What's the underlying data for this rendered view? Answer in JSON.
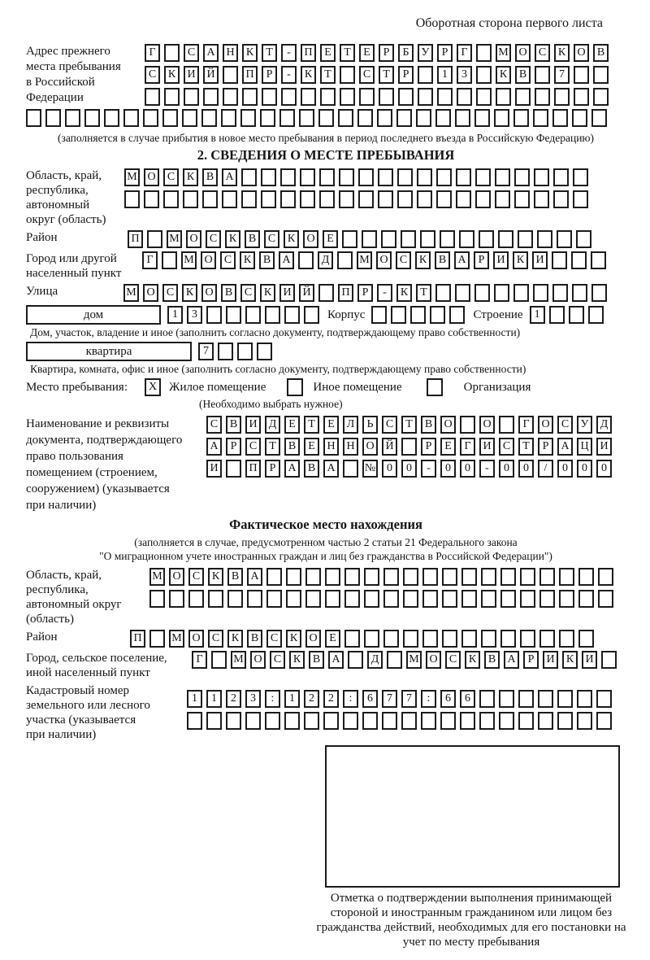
{
  "corner_note": "Оборотная сторона первого листа",
  "prev_address": {
    "label": "Адрес прежнего\nместа пребывания\nв Российской\nФедерации",
    "rows": [
      {
        "text": "Г САНКТ-ПЕТЕРБУРГ МОСКОВ",
        "count": 24
      },
      {
        "text": "СКИЙ ПР-КТ СТР 13 КВ 7",
        "count": 24
      },
      {
        "text": "",
        "count": 24
      }
    ],
    "overflow_row": {
      "text": "",
      "count": 30
    },
    "note": "(заполняется в случае прибытия в новое место пребывания в период последнего въезда в Российскую Федерацию)"
  },
  "section2": {
    "title": "2. СВЕДЕНИЯ О МЕСТЕ ПРЕБЫВАНИЯ",
    "region": {
      "label": "Область, край,\nреспублика,\nавтономный\nокруг (область)",
      "rows": [
        {
          "text": "МОСКВА",
          "count": 24
        },
        {
          "text": "",
          "count": 24
        }
      ]
    },
    "district": {
      "label": "Район",
      "row": {
        "text": "П МОСКВСКОЕ",
        "count": 24
      }
    },
    "city": {
      "label": "Город или другой\nнаселенный пункт",
      "row": {
        "text": "Г МОСКВА Д МОСКВАРИКИ",
        "count": 24
      }
    },
    "street": {
      "label": "Улица",
      "row": {
        "text": "МОСКОВСКИЙ ПР-КТ",
        "count": 25
      }
    },
    "house": {
      "box_label": "дом",
      "number_cells": {
        "text": "13",
        "count": 8
      },
      "korpus_label": "Корпус",
      "korpus_cells": {
        "text": "",
        "count": 5
      },
      "stroenie_label": "Строение",
      "stroenie_cells": {
        "text": "1",
        "count": 4
      },
      "note": "Дом, участок, владение и иное (заполнить согласно документу, подтверждающему право собственности)"
    },
    "apartment": {
      "box_label": "квартира",
      "cells": {
        "text": "7",
        "count": 4
      },
      "note": "Квартира, комната, офис и иное (заполнить согласно документу, подтверждающему право собственности)"
    },
    "stay_type": {
      "label": "Место пребывания:",
      "options": [
        {
          "label": "Жилое помещение",
          "checked": "X"
        },
        {
          "label": "Иное помещение",
          "checked": ""
        },
        {
          "label": "Организация",
          "checked": ""
        }
      ],
      "note": "(Необходимо выбрать нужное)"
    },
    "document": {
      "label": "Наименование и реквизиты\nдокумента, подтверждающего\nправо пользования\nпомещением (строением,\nсооружением) (указывается\nпри наличии)",
      "rows": [
        {
          "text": "СВИДЕТЕЛЬСТВО О ГОСУД",
          "count": 21
        },
        {
          "text": "АРСТВЕННОЙ РЕГИСТРАЦИ",
          "count": 21
        },
        {
          "text": "И ПРАВА №00-00-00/000",
          "count": 21
        }
      ]
    }
  },
  "actual_location": {
    "title": "Фактическое место нахождения",
    "note_line1": "(заполняется в случае, предусмотренном частью 2 статьи 21 Федерального закона",
    "note_line2": "\"О миграционном учете иностранных граждан и лиц без гражданства в Российской Федерации\")",
    "region": {
      "label": "Область, край,\nреспублика,\nавтономный округ\n(область)",
      "rows": [
        {
          "text": "МОСКВА",
          "count": 24
        },
        {
          "text": "",
          "count": 24
        }
      ]
    },
    "district": {
      "label": "Район",
      "row": {
        "text": "П МОСКВСКОЕ",
        "count": 24
      }
    },
    "city": {
      "label": "Город, сельское поселение,\nиной населенный пункт",
      "row": {
        "text": "Г МОСКВА Д МОСКВАРИКИ",
        "count": 22
      }
    },
    "cadastral": {
      "label": "Кадастровый номер\nземельного или лесного\nучастка (указывается\nпри наличии)",
      "rows": [
        {
          "text": "1123:122:677:66",
          "count": 22
        },
        {
          "text": "",
          "count": 22
        }
      ]
    }
  },
  "stamp": {
    "caption": "Отметка о подтверждении выполнения принимающей стороной и иностранным гражданином или лицом без гражданства действий, необходимых для его постановки на учет по месту пребывания"
  }
}
